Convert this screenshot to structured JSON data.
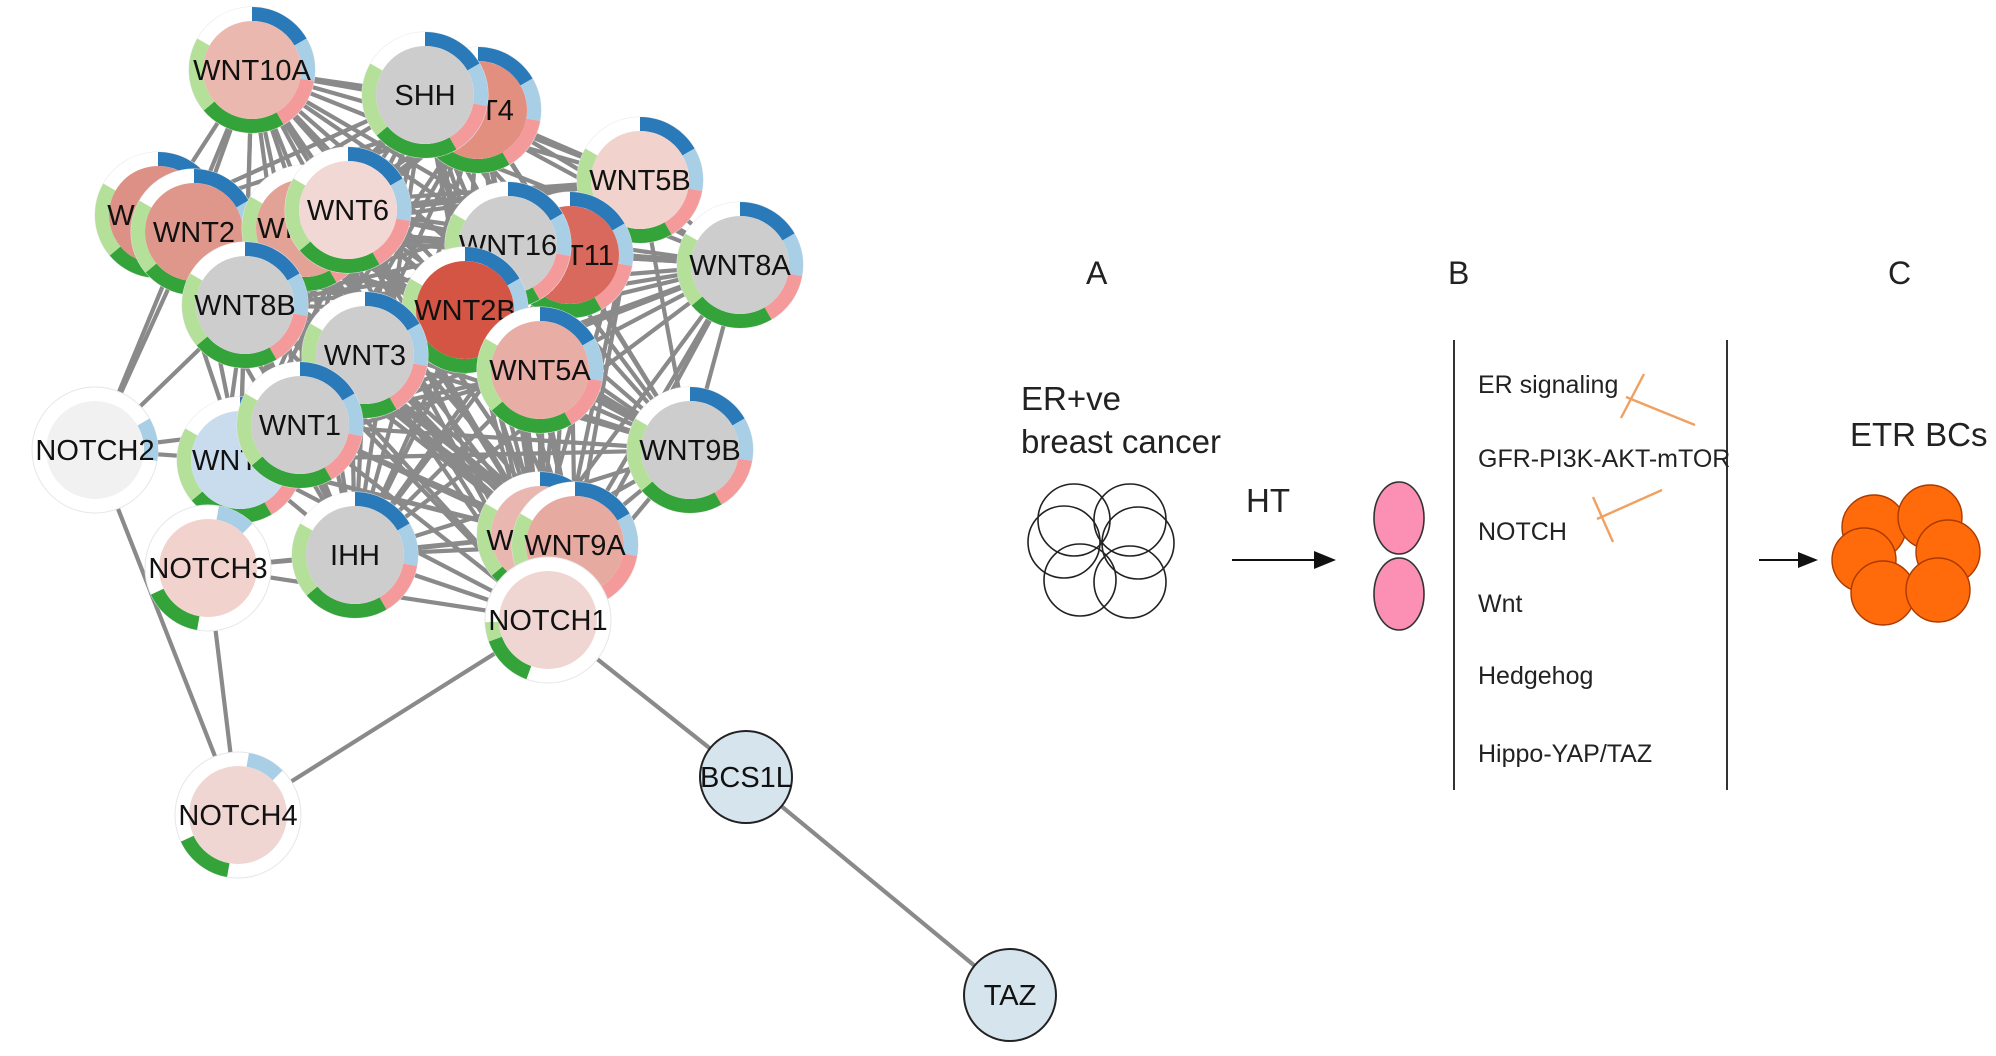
{
  "network": {
    "nodes": [
      {
        "id": "wnt10a",
        "label": "WNT10A",
        "fill": "#eab8ae",
        "ring": true
      },
      {
        "id": "wnt4",
        "label": "WNT4",
        "display_label": "T4",
        "fill": "#e38f80",
        "ring": true
      },
      {
        "id": "shh",
        "label": "SHH",
        "fill": "#cdcdcd",
        "ring": true
      },
      {
        "id": "wnt5b",
        "label": "WNT5B",
        "fill": "#f1d2cd",
        "ring": true
      },
      {
        "id": "wnt_left",
        "label": "WNT",
        "display_label": "WI",
        "fill": "#dd9085",
        "ring": true
      },
      {
        "id": "wnt2",
        "label": "WNT2",
        "fill": "#e0978b",
        "ring": true
      },
      {
        "id": "wnt_mid",
        "label": "WNT",
        "display_label": "WI",
        "fill": "#e3a296",
        "ring": true
      },
      {
        "id": "wnt6",
        "label": "WNT6",
        "fill": "#f1d8d4",
        "ring": true
      },
      {
        "id": "wnt11",
        "label": "WNT11",
        "display_label": "T11",
        "fill": "#d9695c",
        "ring": true
      },
      {
        "id": "wnt16",
        "label": "WNT16",
        "fill": "#cdcdcd",
        "ring": true
      },
      {
        "id": "wnt8a",
        "label": "WNT8A",
        "fill": "#cdcdcd",
        "ring": true
      },
      {
        "id": "wnt8b",
        "label": "WNT8B",
        "fill": "#cdcdcd",
        "ring": true
      },
      {
        "id": "wnt2b",
        "label": "WNT2B",
        "fill": "#d55545",
        "ring": true
      },
      {
        "id": "wnt3",
        "label": "WNT3",
        "fill": "#cdcdcd",
        "ring": true
      },
      {
        "id": "wnt5a",
        "label": "WNT5A",
        "fill": "#e8ada4",
        "ring": true
      },
      {
        "id": "notch2",
        "label": "NOTCH2",
        "fill": "#f1f1f1",
        "ring": true
      },
      {
        "id": "wnt7",
        "label": "WNT7",
        "display_label": "WNT",
        "fill": "#c8dced",
        "ring": true
      },
      {
        "id": "wnt1",
        "label": "WNT1",
        "fill": "#cdcdcd",
        "ring": true
      },
      {
        "id": "wnt9b",
        "label": "WNT9B",
        "fill": "#cdcdcd",
        "ring": true
      },
      {
        "id": "notch3",
        "label": "NOTCH3",
        "fill": "#f1d2cd",
        "ring": true
      },
      {
        "id": "ihh",
        "label": "IHH",
        "fill": "#cdcdcd",
        "ring": true
      },
      {
        "id": "wnt_low",
        "label": "WNT",
        "display_label": "W",
        "fill": "#e9b7b0",
        "ring": true
      },
      {
        "id": "wnt9a",
        "label": "WNT9A",
        "fill": "#e6aaa1",
        "ring": true
      },
      {
        "id": "notch1",
        "label": "NOTCH1",
        "fill": "#f0d6d2",
        "ring": true
      },
      {
        "id": "notch4",
        "label": "NOTCH4",
        "fill": "#f0d6d2",
        "ring": true
      },
      {
        "id": "bcs1l",
        "label": "BCS1L",
        "fill": "#d6e4ee",
        "ring": false
      },
      {
        "id": "taz",
        "label": "TAZ",
        "fill": "#d6e4ee",
        "ring": false
      }
    ],
    "edge_color": "#8a8a8a",
    "ring_colors": {
      "dark_blue": "#2a7ab9",
      "light_blue": "#a8cfe6",
      "light_green": "#b4e09a",
      "dark_green": "#34a33a",
      "pink": "#f59a9a"
    }
  },
  "panels": {
    "a": {
      "letter": "A",
      "title_line1": "ER+ve",
      "title_line2": "breast cancer"
    },
    "arrow_label": "HT",
    "b": {
      "letter": "B",
      "pathways": [
        "ER signaling",
        "GFR-PI3K-AKT-mTOR",
        "NOTCH",
        "Wnt",
        "Hedgehog",
        "Hippo-YAP/TAZ"
      ],
      "inhibitor_color": "#f0a060"
    },
    "c": {
      "letter": "C",
      "title": "ETR BCs",
      "cluster_color": "#ff6a0a"
    },
    "ht_cells_color": "#fb8fb4"
  }
}
